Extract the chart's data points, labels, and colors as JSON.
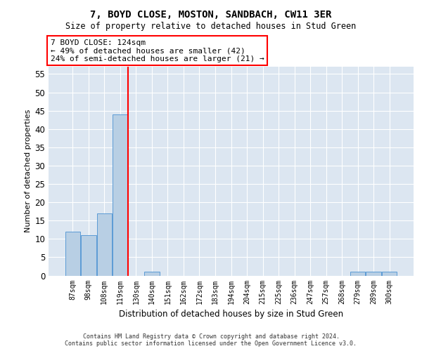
{
  "title": "7, BOYD CLOSE, MOSTON, SANDBACH, CW11 3ER",
  "subtitle": "Size of property relative to detached houses in Stud Green",
  "xlabel": "Distribution of detached houses by size in Stud Green",
  "ylabel": "Number of detached properties",
  "categories": [
    "87sqm",
    "98sqm",
    "108sqm",
    "119sqm",
    "130sqm",
    "140sqm",
    "151sqm",
    "162sqm",
    "172sqm",
    "183sqm",
    "194sqm",
    "204sqm",
    "215sqm",
    "225sqm",
    "236sqm",
    "247sqm",
    "257sqm",
    "268sqm",
    "279sqm",
    "289sqm",
    "300sqm"
  ],
  "values": [
    12,
    11,
    17,
    44,
    0,
    1,
    0,
    0,
    0,
    0,
    0,
    0,
    0,
    0,
    0,
    0,
    0,
    0,
    1,
    1,
    1
  ],
  "bar_color": "#b8cfe4",
  "bar_edge_color": "#5b9bd5",
  "vline_x_index": 3,
  "vline_color": "red",
  "annotation_line1": "7 BOYD CLOSE: 124sqm",
  "annotation_line2": "← 49% of detached houses are smaller (42)",
  "annotation_line3": "24% of semi-detached houses are larger (21) →",
  "ylim": [
    0,
    57
  ],
  "yticks": [
    0,
    5,
    10,
    15,
    20,
    25,
    30,
    35,
    40,
    45,
    50,
    55
  ],
  "bg_color": "#dce6f1",
  "footer_line1": "Contains HM Land Registry data © Crown copyright and database right 2024.",
  "footer_line2": "Contains public sector information licensed under the Open Government Licence v3.0."
}
